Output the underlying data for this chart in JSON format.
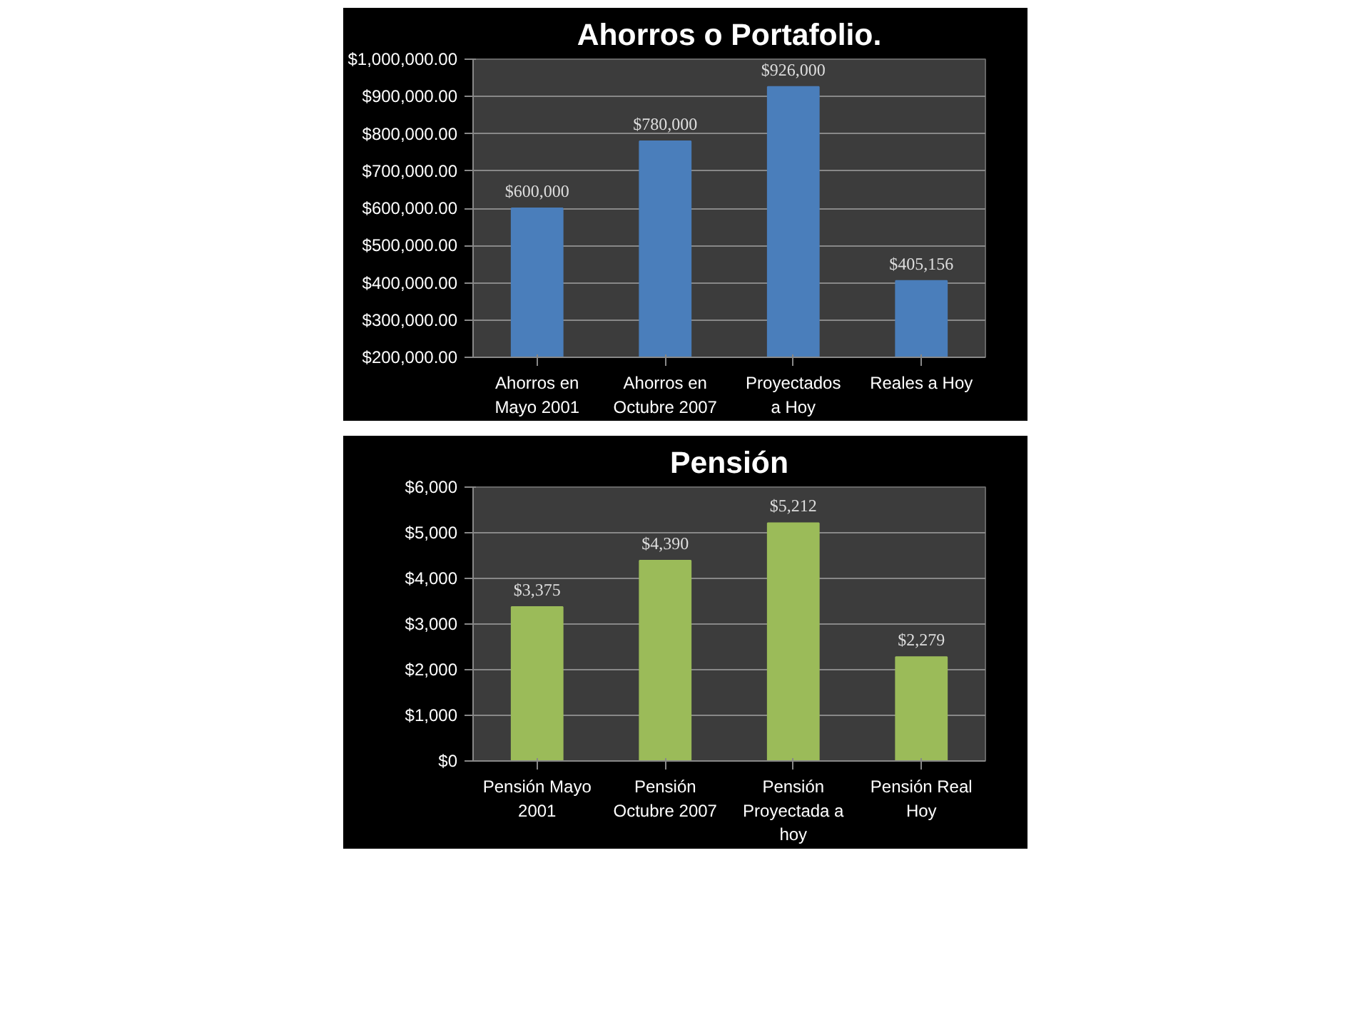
{
  "chart_data": [
    {
      "type": "bar",
      "title": "Ahorros o Portafolio.",
      "categories": [
        "Ahorros en Mayo 2001",
        "Ahorros en Octubre 2007",
        "Proyectados a Hoy",
        "Reales a Hoy"
      ],
      "values": [
        600000,
        780000,
        926000,
        405156
      ],
      "value_labels": [
        "$600,000",
        "$780,000",
        "$926,000",
        "$405,156"
      ],
      "color": "#4a7ebb",
      "ylim": [
        200000,
        1000000
      ],
      "yticks": [
        {
          "value": 200000,
          "label": "$200,000.00"
        },
        {
          "value": 300000,
          "label": "$300,000.00"
        },
        {
          "value": 400000,
          "label": "$400,000.00"
        },
        {
          "value": 500000,
          "label": "$500,000.00"
        },
        {
          "value": 600000,
          "label": "$600,000.00"
        },
        {
          "value": 700000,
          "label": "$700,000.00"
        },
        {
          "value": 800000,
          "label": "$800,000.00"
        },
        {
          "value": 900000,
          "label": "$900,000.00"
        },
        {
          "value": 1000000,
          "label": "$1,000,000.00"
        }
      ],
      "grid": "y"
    },
    {
      "type": "bar",
      "title": "Pensión",
      "categories": [
        "Pensión Mayo 2001",
        "Pensión Octubre 2007",
        "Pensión Proyectada a hoy",
        "Pensión Real Hoy"
      ],
      "values": [
        3375,
        4390,
        5212,
        2279
      ],
      "value_labels": [
        "$3,375",
        "$4,390",
        "$5,212",
        "$2,279"
      ],
      "color": "#9bbb59",
      "ylim": [
        0,
        6000
      ],
      "yticks": [
        {
          "value": 0,
          "label": "$0"
        },
        {
          "value": 1000,
          "label": "$1,000"
        },
        {
          "value": 2000,
          "label": "$2,000"
        },
        {
          "value": 3000,
          "label": "$3,000"
        },
        {
          "value": 4000,
          "label": "$4,000"
        },
        {
          "value": 5000,
          "label": "$5,000"
        },
        {
          "value": 6000,
          "label": "$6,000"
        }
      ],
      "grid": "y"
    }
  ]
}
